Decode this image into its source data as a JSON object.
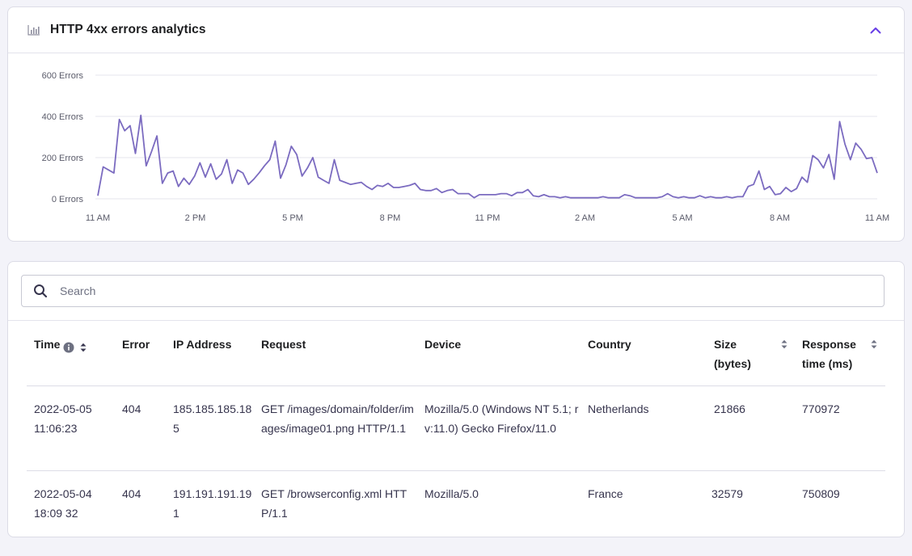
{
  "chart_card": {
    "title": "HTTP 4xx errors analytics",
    "icon": "bar-chart-icon",
    "collapse_icon": "chevron-up-icon"
  },
  "chart_data": {
    "type": "line",
    "ylabel": "",
    "xlabel": "",
    "ylim": [
      0,
      600
    ],
    "y_ticks": [
      {
        "value": 600,
        "label": "600 Errors"
      },
      {
        "value": 400,
        "label": "400 Errors"
      },
      {
        "value": 200,
        "label": "200 Errors"
      },
      {
        "value": 0,
        "label": "0 Errors"
      }
    ],
    "x_ticks": [
      {
        "hour": 0,
        "label": "11 AM"
      },
      {
        "hour": 3,
        "label": "2 PM"
      },
      {
        "hour": 6,
        "label": "5 PM"
      },
      {
        "hour": 9,
        "label": "8 PM"
      },
      {
        "hour": 12,
        "label": "11 PM"
      },
      {
        "hour": 15,
        "label": "2 AM"
      },
      {
        "hour": 18,
        "label": "5 AM"
      },
      {
        "hour": 21,
        "label": "8 AM"
      },
      {
        "hour": 24,
        "label": "11 AM"
      }
    ],
    "grid": true,
    "line_color": "#7b6bc0",
    "series": [
      {
        "name": "",
        "values": [
          15,
          155,
          140,
          125,
          385,
          330,
          355,
          220,
          405,
          160,
          230,
          305,
          75,
          125,
          135,
          60,
          100,
          70,
          110,
          175,
          105,
          170,
          95,
          120,
          190,
          75,
          140,
          125,
          70,
          95,
          125,
          160,
          190,
          280,
          100,
          165,
          255,
          215,
          110,
          150,
          200,
          105,
          90,
          75,
          190,
          90,
          80,
          70,
          75,
          80,
          60,
          45,
          65,
          60,
          75,
          55,
          55,
          60,
          65,
          75,
          45,
          40,
          40,
          50,
          30,
          40,
          45,
          25,
          25,
          25,
          5,
          20,
          20,
          20,
          20,
          25,
          25,
          15,
          30,
          30,
          45,
          15,
          10,
          20,
          10,
          10,
          5,
          10,
          5,
          5,
          5,
          5,
          5,
          5,
          10,
          5,
          5,
          5,
          20,
          15,
          5,
          5,
          5,
          5,
          5,
          10,
          25,
          10,
          5,
          10,
          5,
          5,
          15,
          5,
          10,
          5,
          5,
          10,
          5,
          10,
          10,
          60,
          70,
          135,
          45,
          60,
          20,
          25,
          55,
          35,
          50,
          105,
          80,
          210,
          190,
          150,
          215,
          95,
          375,
          265,
          190,
          270,
          240,
          195,
          200,
          125
        ]
      }
    ]
  },
  "search": {
    "placeholder": "Search",
    "value": "",
    "icon": "search-icon"
  },
  "table": {
    "headers": {
      "time": "Time",
      "error": "Error",
      "ip": "IP Address",
      "request": "Request",
      "device": "Device",
      "country": "Country",
      "size_line1": "Size",
      "size_line2": "(bytes)",
      "response_line1": "Response",
      "response_line2": "time (ms)"
    },
    "rows": [
      {
        "time_line1": "2022-05-05",
        "time_line2": "11:06:23",
        "error": "404",
        "ip": "185.185.185.185",
        "request": "GET /images/domain/folder/images/image01.png HTTP/1.1",
        "device": "Mozilla/5.0 (Windows NT 5.1; rv:11.0) Gecko Firefox/11.0",
        "country": "Netherlands",
        "size": "21866",
        "response": "770972"
      },
      {
        "time_line1": "2022-05-04",
        "time_line2": "18:09 32",
        "error": "404",
        "ip": "191.191.191.191",
        "request": "GET /browserconfig.xml HTTP/1.1",
        "device": "Mozilla/5.0",
        "country": "France",
        "size": "32579",
        "response": "750809"
      }
    ]
  }
}
